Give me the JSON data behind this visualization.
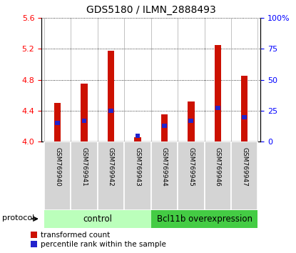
{
  "title": "GDS5180 / ILMN_2888493",
  "samples": [
    "GSM769940",
    "GSM769941",
    "GSM769942",
    "GSM769943",
    "GSM769944",
    "GSM769945",
    "GSM769946",
    "GSM769947"
  ],
  "transformed_counts": [
    4.5,
    4.75,
    5.17,
    4.06,
    4.35,
    4.52,
    5.25,
    4.85
  ],
  "percentile_ranks": [
    15,
    17,
    25,
    5,
    13,
    17,
    27,
    20
  ],
  "ylim_left": [
    4.0,
    5.6
  ],
  "ylim_right": [
    0,
    100
  ],
  "yticks_left": [
    4.0,
    4.4,
    4.8,
    5.2,
    5.6
  ],
  "yticks_right": [
    0,
    25,
    50,
    75,
    100
  ],
  "ytick_labels_right": [
    "0",
    "25",
    "50",
    "75",
    "100%"
  ],
  "bar_color": "#cc1100",
  "percentile_color": "#2222cc",
  "control_samples": 4,
  "control_label": "control",
  "overexp_label": "Bcl11b overexpression",
  "control_bg": "#bbffbb",
  "overexp_bg": "#44cc44",
  "protocol_label": "protocol",
  "legend_items": [
    "transformed count",
    "percentile rank within the sample"
  ],
  "bar_width": 0.25,
  "base_value": 4.0
}
